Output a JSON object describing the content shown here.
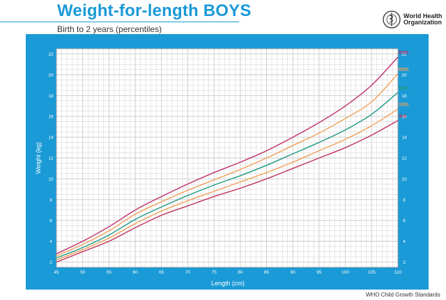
{
  "header": {
    "title": "Weight-for-length BOYS",
    "subtitle": "Birth to 2 years (percentiles)"
  },
  "logo": {
    "icon": "who-emblem-icon",
    "line1": "World Health",
    "line2": "Organization"
  },
  "footer": {
    "text": "WHO Child Growth Standards"
  },
  "colors": {
    "panel": "#1a9ad6",
    "plot_bg": "#ffffff",
    "grid": "#c9c9c9",
    "title": "#1a9ad6"
  },
  "chart_data": {
    "type": "line",
    "title": "Weight-for-length BOYS",
    "subtitle": "Birth to 2 years (percentiles)",
    "xlabel": "Length (cm)",
    "ylabel": "Weight (kg)",
    "xlim": [
      45,
      110
    ],
    "ylim": [
      1.5,
      22.5
    ],
    "xticks": [
      45,
      50,
      55,
      60,
      65,
      70,
      75,
      80,
      85,
      90,
      95,
      100,
      105,
      110
    ],
    "yticks": [
      2,
      4,
      6,
      8,
      10,
      12,
      14,
      16,
      18,
      20,
      22
    ],
    "grid": true,
    "x": [
      45,
      50,
      55,
      60,
      65,
      70,
      75,
      80,
      85,
      90,
      95,
      100,
      105,
      110
    ],
    "series": [
      {
        "name": "3rd",
        "color": "#c0305a",
        "values": [
          2.0,
          3.0,
          4.0,
          5.3,
          6.5,
          7.4,
          8.3,
          9.1,
          10.0,
          11.0,
          12.0,
          13.0,
          14.2,
          15.6
        ]
      },
      {
        "name": "15th",
        "color": "#f0a058",
        "values": [
          2.2,
          3.2,
          4.3,
          5.7,
          6.9,
          7.9,
          8.8,
          9.7,
          10.6,
          11.6,
          12.7,
          13.8,
          15.1,
          16.7
        ]
      },
      {
        "name": "50th",
        "color": "#1e9a82",
        "values": [
          2.4,
          3.4,
          4.6,
          6.1,
          7.3,
          8.4,
          9.4,
          10.3,
          11.3,
          12.4,
          13.5,
          14.7,
          16.2,
          18.3
        ]
      },
      {
        "name": "85th",
        "color": "#f0a058",
        "values": [
          2.6,
          3.7,
          5.0,
          6.6,
          7.8,
          8.9,
          9.9,
          10.9,
          12.0,
          13.2,
          14.4,
          15.8,
          17.4,
          20.1
        ]
      },
      {
        "name": "97th",
        "color": "#c0306e",
        "values": [
          2.8,
          4.0,
          5.4,
          7.0,
          8.3,
          9.5,
          10.6,
          11.6,
          12.7,
          14.0,
          15.4,
          17.0,
          19.0,
          21.7
        ]
      }
    ]
  }
}
